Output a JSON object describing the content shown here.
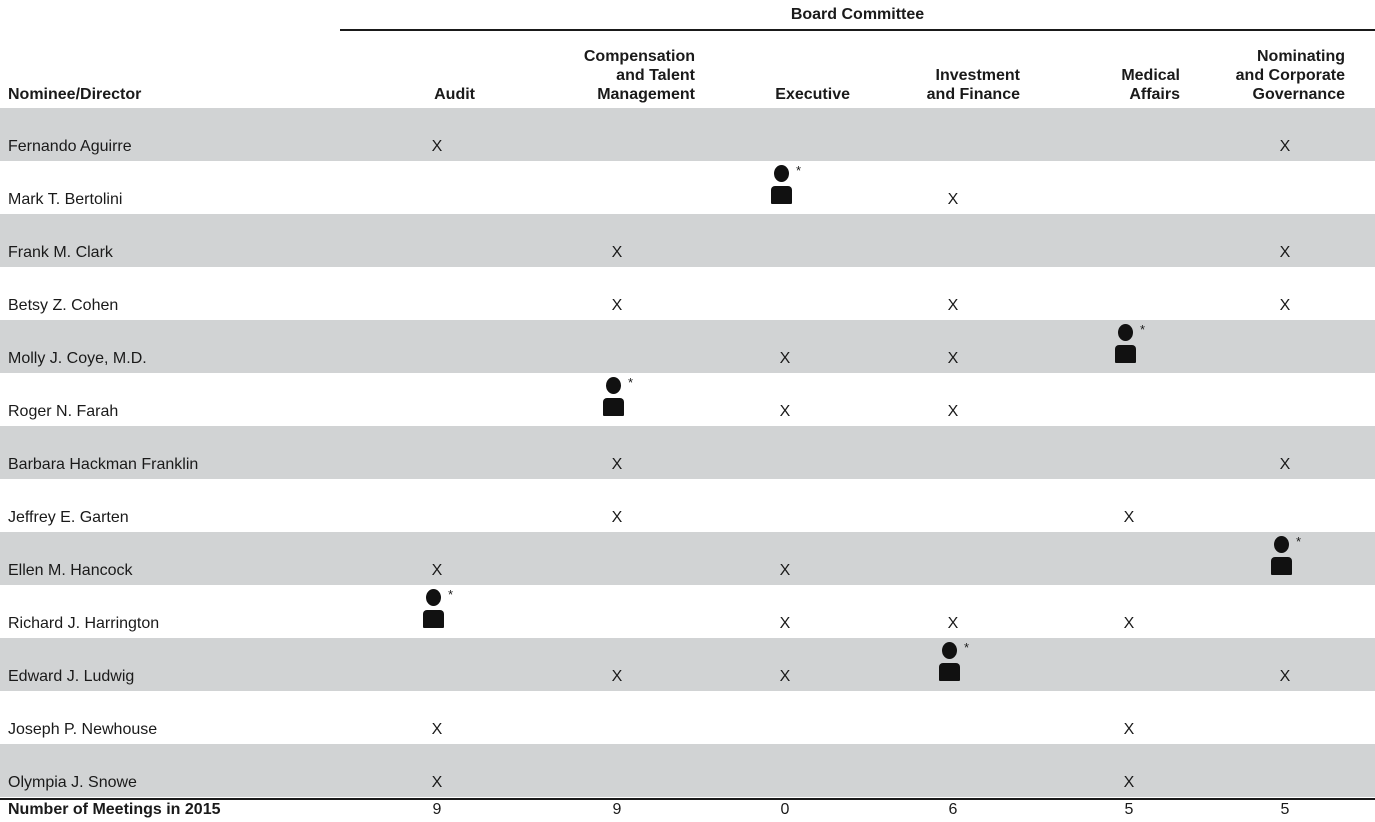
{
  "table": {
    "group_header": "Board Committee",
    "name_header": "Nominee/Director",
    "committees": [
      {
        "lines": [
          "Audit"
        ]
      },
      {
        "lines": [
          "Compensation",
          "and Talent",
          "Management"
        ]
      },
      {
        "lines": [
          "Executive"
        ]
      },
      {
        "lines": [
          "Investment",
          "and Finance"
        ]
      },
      {
        "lines": [
          "Medical",
          "Affairs"
        ]
      },
      {
        "lines": [
          "Nominating",
          "and Corporate",
          "Governance"
        ]
      }
    ],
    "member_mark": "X",
    "chair_mark": "*",
    "rows": [
      {
        "name": "Fernando Aguirre",
        "cells": [
          "X",
          "",
          "",
          "",
          "",
          "X"
        ]
      },
      {
        "name": "Mark T. Bertolini",
        "cells": [
          "",
          "",
          "chair",
          "X",
          "",
          ""
        ]
      },
      {
        "name": "Frank M. Clark",
        "cells": [
          "",
          "X",
          "",
          "",
          "",
          "X"
        ]
      },
      {
        "name": "Betsy Z. Cohen",
        "cells": [
          "",
          "X",
          "",
          "X",
          "",
          "X"
        ]
      },
      {
        "name": "Molly J. Coye, M.D.",
        "cells": [
          "",
          "",
          "X",
          "X",
          "chair",
          ""
        ]
      },
      {
        "name": "Roger N. Farah",
        "cells": [
          "",
          "chair",
          "X",
          "X",
          "",
          ""
        ]
      },
      {
        "name": "Barbara Hackman Franklin",
        "cells": [
          "",
          "X",
          "",
          "",
          "",
          "X"
        ]
      },
      {
        "name": "Jeffrey E. Garten",
        "cells": [
          "",
          "X",
          "",
          "",
          "X",
          ""
        ]
      },
      {
        "name": "Ellen M. Hancock",
        "cells": [
          "X",
          "",
          "X",
          "",
          "",
          "chair"
        ]
      },
      {
        "name": "Richard J. Harrington",
        "cells": [
          "chair",
          "",
          "X",
          "X",
          "X",
          ""
        ]
      },
      {
        "name": "Edward J. Ludwig",
        "cells": [
          "",
          "X",
          "X",
          "chair",
          "",
          "X"
        ]
      },
      {
        "name": "Joseph P. Newhouse",
        "cells": [
          "X",
          "",
          "",
          "",
          "X",
          ""
        ]
      },
      {
        "name": "Olympia J. Snowe",
        "cells": [
          "X",
          "",
          "",
          "",
          "X",
          ""
        ]
      }
    ],
    "footer": {
      "label": "Number of Meetings in 2015",
      "values": [
        "9",
        "9",
        "0",
        "6",
        "5",
        "5"
      ]
    }
  },
  "icons": {
    "chair": "chair-person-icon"
  },
  "colors": {
    "shade": "#d1d3d4",
    "text": "#1a1a1a",
    "rule": "#1a1a1a"
  }
}
